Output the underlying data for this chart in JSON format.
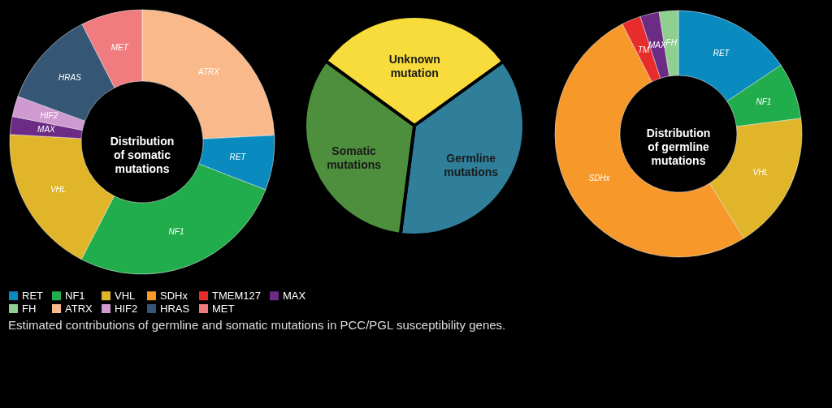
{
  "chart_data": [
    {
      "type": "donut",
      "title": "Distribution of somatic mutations",
      "categories": [
        "ATRX",
        "RET",
        "NF1",
        "VHL",
        "MAX",
        "HIF2",
        "HRAS",
        "MET"
      ],
      "values": [
        24.2,
        6.7,
        26.7,
        18.3,
        2.2,
        2.5,
        11.9,
        7.5
      ],
      "colors": [
        "#f9b98b",
        "#0a8bbf",
        "#21ad4b",
        "#e0b52a",
        "#6c2c86",
        "#cf9ad0",
        "#355675",
        "#f07c80"
      ],
      "legend": "bottom",
      "annotations": [
        "Estimated contributions of germline and somatic mutations in PCC/PGL susceptibility genes."
      ]
    },
    {
      "type": "pie",
      "categories": [
        "Unknown mutation",
        "Germline mutations",
        "Somatic mutations"
      ],
      "values": [
        30,
        37,
        33
      ],
      "colors": [
        "#f7dc3c",
        "#2f7f9a",
        "#4e8f3e"
      ]
    },
    {
      "type": "donut",
      "title": "Distribution of germline mutations",
      "categories": [
        "RET",
        "NF1",
        "VHL",
        "SDHx",
        "TMEM127",
        "MAX",
        "FH"
      ],
      "values": [
        15.6,
        7.4,
        18.1,
        51.4,
        2.5,
        2.5,
        2.5
      ],
      "value_labels": [
        "RET",
        "NF1",
        "VHL",
        "SDHx",
        "TM",
        "MAX",
        "FH"
      ],
      "colors": [
        "#0a8bbf",
        "#21ad4b",
        "#e0b52a",
        "#f7982a",
        "#e82b2b",
        "#6c2c86",
        "#8fcf8f"
      ],
      "legend": "bottom"
    }
  ]
}
